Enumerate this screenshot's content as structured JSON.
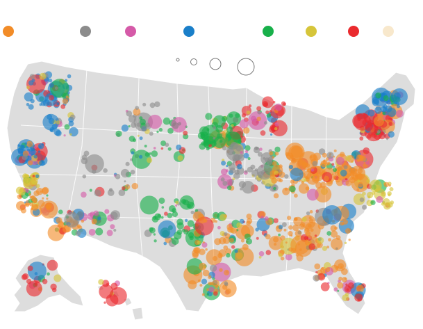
{
  "legend": {
    "colors": [
      {
        "name": "orange",
        "hex": "#f28c28"
      },
      {
        "name": "gray",
        "hex": "#8c8c8c"
      },
      {
        "name": "magenta",
        "hex": "#d55aa8"
      },
      {
        "name": "blue",
        "hex": "#1a7fc9"
      },
      {
        "name": "green",
        "hex": "#18b04a"
      },
      {
        "name": "yellow",
        "hex": "#d6c53a"
      },
      {
        "name": "red",
        "hex": "#ea2a2e"
      },
      {
        "name": "cream",
        "hex": "#f8e8cc"
      }
    ],
    "size_levels": [
      "smallest",
      "small",
      "medium",
      "large"
    ]
  },
  "map": {
    "land_color": "#dddddd",
    "border_color": "#ffffff",
    "regions": [
      "contiguous-us",
      "alaska",
      "hawaii"
    ]
  }
}
